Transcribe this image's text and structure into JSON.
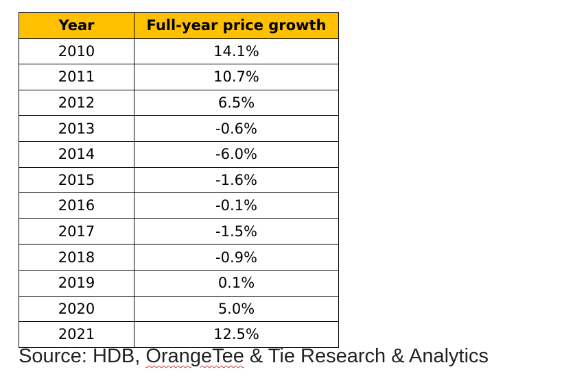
{
  "table": {
    "header_color": "#ffc000",
    "headers": [
      "Year",
      "Full-year price growth"
    ],
    "rows": [
      [
        "2010",
        "14.1%"
      ],
      [
        "2011",
        "10.7%"
      ],
      [
        "2012",
        "6.5%"
      ],
      [
        "2013",
        "-0.6%"
      ],
      [
        "2014",
        "-6.0%"
      ],
      [
        "2015",
        "-1.6%"
      ],
      [
        "2016",
        "-0.1%"
      ],
      [
        "2017",
        "-1.5%"
      ],
      [
        "2018",
        "-0.9%"
      ],
      [
        "2019",
        "0.1%"
      ],
      [
        "2020",
        "5.0%"
      ],
      [
        "2021",
        "12.5%"
      ]
    ]
  },
  "source": {
    "prefix": "Source: HDB, ",
    "brand": "OrangeTee",
    "suffix": " & Tie Research & Analytics"
  }
}
